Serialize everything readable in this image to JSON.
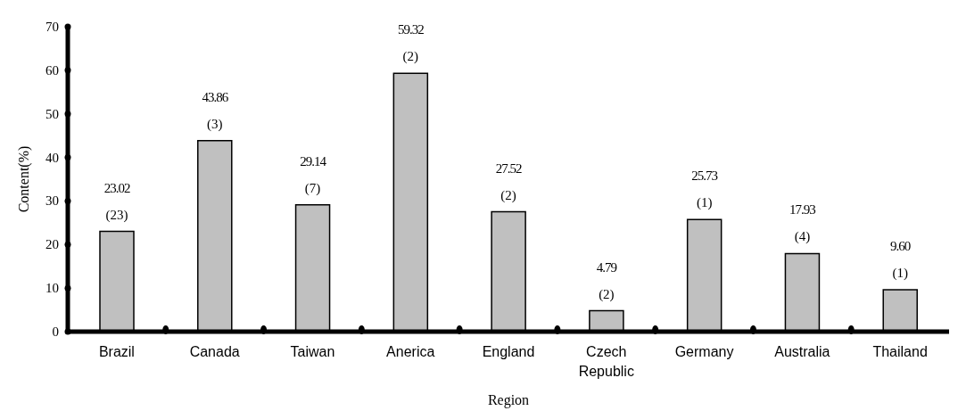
{
  "chart_data": {
    "type": "bar",
    "xlabel": "Region",
    "ylabel": "Content(%)",
    "categories": [
      "Brazil",
      "Canada",
      "Taiwan",
      "Anerica",
      "England",
      "Czech Republic",
      "Germany",
      "Australia",
      "Thailand"
    ],
    "values": [
      23.02,
      43.86,
      29.14,
      59.32,
      27.52,
      4.79,
      25.73,
      17.93,
      9.6
    ],
    "value_labels": [
      "23.02",
      "43.86",
      "29.14",
      "59.32",
      "27.52",
      "4.79",
      "25.73",
      "17.93",
      "9.60"
    ],
    "color": "#c0c0c0",
    "ylim": [
      0,
      70
    ],
    "yticks": [
      0,
      10,
      20,
      30,
      40,
      50,
      60,
      70
    ],
    "grid": false,
    "legend": false,
    "annotations": [
      {
        "text": "(23)",
        "x": "Brazil",
        "y": 23.02
      },
      {
        "text": "(3)",
        "x": "Canada",
        "y": 43.86
      },
      {
        "text": "(7)",
        "x": "Taiwan",
        "y": 29.14
      },
      {
        "text": "(2)",
        "x": "Anerica",
        "y": 59.32
      },
      {
        "text": "(2)",
        "x": "England",
        "y": 27.52
      },
      {
        "text": "(2)",
        "x": "Czech Republic",
        "y": 4.79
      },
      {
        "text": "(1)",
        "x": "Germany",
        "y": 25.73
      },
      {
        "text": "(4)",
        "x": "Australia",
        "y": 17.93
      },
      {
        "text": "(1)",
        "x": "Thailand",
        "y": 9.6
      }
    ]
  }
}
